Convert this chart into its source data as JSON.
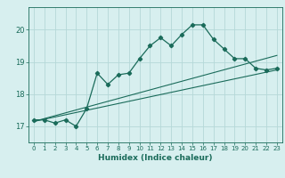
{
  "title": "",
  "xlabel": "Humidex (Indice chaleur)",
  "ylabel": "",
  "background_color": "#d7efef",
  "line_color": "#1a6b5a",
  "grid_color": "#b5d8d8",
  "xlim": [
    -0.5,
    23.5
  ],
  "ylim": [
    16.5,
    20.7
  ],
  "yticks": [
    17,
    18,
    19,
    20
  ],
  "ytick_labels": [
    "17",
    "18",
    "19",
    "20"
  ],
  "xticks": [
    0,
    1,
    2,
    3,
    4,
    5,
    6,
    7,
    8,
    9,
    10,
    11,
    12,
    13,
    14,
    15,
    16,
    17,
    18,
    19,
    20,
    21,
    22,
    23
  ],
  "data_x": [
    0,
    1,
    2,
    3,
    4,
    5,
    6,
    7,
    8,
    9,
    10,
    11,
    12,
    13,
    14,
    15,
    16,
    17,
    18,
    19,
    20,
    21,
    22,
    23
  ],
  "data_y": [
    17.2,
    17.2,
    17.1,
    17.2,
    17.0,
    17.55,
    18.65,
    18.3,
    18.6,
    18.65,
    19.1,
    19.5,
    19.75,
    19.5,
    19.85,
    20.15,
    20.15,
    19.7,
    19.4,
    19.1,
    19.1,
    18.8,
    18.75,
    18.8
  ],
  "trend1_x": [
    0,
    23
  ],
  "trend1_y": [
    17.15,
    18.75
  ],
  "trend2_x": [
    0,
    23
  ],
  "trend2_y": [
    17.15,
    19.2
  ]
}
